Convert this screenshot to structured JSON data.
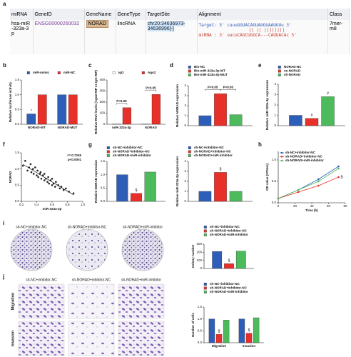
{
  "panels": [
    "a",
    "b",
    "c",
    "d",
    "e",
    "f",
    "g",
    "h",
    "i",
    "j"
  ],
  "table": {
    "headers": [
      "miRNA",
      "GeneID",
      "GeneName",
      "GeneType",
      "TargetSite",
      "Alignment",
      "Class"
    ],
    "row": {
      "mirna": "hsa-miR-323a-3p",
      "gene_id": "ENSG00000260032",
      "gene_name": "NORAD",
      "gene_type": "lincRNA",
      "target_site": "chr20:34636973-34636996[-]",
      "alignment": {
        "target": "Target: 5' cuuuGGUACAGUAUGUAAUGUu 3'",
        "match": "|| || ||||||||",
        "mirna": "miRNA : 3' uucuCAGCUGGCA---CAUUACAc 5'"
      },
      "class": "7mer-m8"
    }
  },
  "photos": {
    "colony": [
      "sh-NC+inhibitor-NC",
      "sh-NORAD+inhibitor-NC",
      "sh-NORAD+miR-inhibitor"
    ],
    "transwell_columns": [
      "sh-NC+inhibitor-NC",
      "sh-NORAD+inhibitor-NC",
      "sh-NORAD+miR-inhibitor"
    ],
    "transwell_rows": [
      "Migration",
      "Invasion"
    ]
  },
  "chart_data": [
    {
      "type": "bar",
      "y_label": "Relative luciferase activity",
      "categories": [
        "NORAD-WT",
        "NORAD-MUT"
      ],
      "ylim": [
        0,
        1.5
      ],
      "yticks": [
        {
          "value": 0,
          "label": "0.0"
        },
        0.5,
        {
          "value": 1,
          "label": "1.0"
        },
        1.5
      ],
      "series": [
        {
          "name": "miR-mimic",
          "color": "#2e5fb8",
          "values": [
            0.35,
            1.0
          ],
          "flags": [
            "*",
            null
          ]
        },
        {
          "name": "miR-NC",
          "color": "#e8302a",
          "values": [
            1.0,
            1.0
          ]
        }
      ]
    },
    {
      "type": "bar",
      "y_label": "Relative RNA levels (Ago2 RIP vs IgG RIP)",
      "categories": [
        "miR-323a-3p",
        "NORAD"
      ],
      "ylim": [
        0,
        400
      ],
      "yticks": [
        0,
        100,
        200,
        300,
        400
      ],
      "brackets": [
        "P<0.05",
        "P<0.05"
      ],
      "series": [
        {
          "name": "IgG",
          "color": "#ffffff",
          "values": [
            1,
            1
          ]
        },
        {
          "name": "Ago2",
          "color": "#e8302a",
          "values": [
            150,
            270
          ]
        }
      ]
    },
    {
      "type": "bar",
      "y_label": "Relative NORAD expression",
      "categories": [
        null
      ],
      "ylim": [
        0,
        4
      ],
      "yticks": [
        0,
        1,
        2,
        3,
        4
      ],
      "brackets": [
        "P<0.05",
        "P<0.05"
      ],
      "series": [
        {
          "name": "Bio-NC",
          "color": "#2e5fb8",
          "values": [
            1.0
          ]
        },
        {
          "name": "Bio-miR-323a-3p-WT",
          "color": "#e8302a",
          "values": [
            3.2
          ]
        },
        {
          "name": "Bio-miR-323a-3p-MUT",
          "color": "#4dbb5c",
          "values": [
            1.1
          ]
        }
      ]
    },
    {
      "type": "bar",
      "y_label": "Relative miR-323a-3p expression",
      "categories": [
        null
      ],
      "ylim": [
        0,
        4
      ],
      "yticks": [
        0,
        1,
        2,
        3,
        4
      ],
      "series": [
        {
          "name": "NORAD-NC",
          "color": "#2e5fb8",
          "values": [
            1.0
          ]
        },
        {
          "name": "oe-NORAD",
          "color": "#e8302a",
          "values": [
            0.7
          ],
          "flags": [
            "#"
          ]
        },
        {
          "name": "sh-NORAD",
          "color": "#4dbb5c",
          "values": [
            2.8
          ],
          "flags": [
            "#"
          ]
        }
      ]
    },
    {
      "type": "scatter",
      "x_label": "miR-323a-3p",
      "y_label": "NORAD",
      "annotations": [
        "r=-0.7245",
        "p<0.0001"
      ],
      "color": "#222222",
      "xlim": [
        0.2,
        1.0
      ],
      "xticks": [
        0.2,
        0.4,
        0.6,
        0.8,
        {
          "value": 1,
          "label": "1.0"
        }
      ],
      "ylim": [
        0,
        1.5
      ],
      "yticks": [
        {
          "value": 0,
          "label": "0.0"
        },
        0.5,
        {
          "value": 1,
          "label": "1.0"
        },
        1.5
      ],
      "x": [
        0.22,
        0.25,
        0.28,
        0.3,
        0.32,
        0.33,
        0.35,
        0.36,
        0.38,
        0.4,
        0.41,
        0.42,
        0.44,
        0.45,
        0.46,
        0.48,
        0.5,
        0.5,
        0.52,
        0.54,
        0.55,
        0.56,
        0.58,
        0.6,
        0.6,
        0.62,
        0.64,
        0.65,
        0.68,
        0.7,
        0.72,
        0.75,
        0.78,
        0.82,
        0.88
      ],
      "y": [
        1.1,
        1.25,
        0.95,
        1.05,
        1.15,
        0.9,
        1.0,
        0.85,
        1.05,
        0.8,
        0.95,
        0.75,
        0.85,
        0.9,
        0.7,
        0.8,
        0.65,
        0.85,
        0.7,
        0.6,
        0.75,
        0.55,
        0.65,
        0.5,
        0.7,
        0.55,
        0.45,
        0.6,
        0.5,
        0.4,
        0.45,
        0.35,
        0.4,
        0.3,
        0.25
      ]
    },
    {
      "type": "bar",
      "y_label": "Relative NORAD expression",
      "categories": [
        null
      ],
      "ylim": [
        0,
        1.5
      ],
      "yticks": [
        {
          "value": 0,
          "label": "0.0"
        },
        0.5,
        {
          "value": 1,
          "label": "1.0"
        },
        1.5
      ],
      "series": [
        {
          "name": "sh-NC+inhibitor-NC",
          "color": "#2e5fb8",
          "values": [
            1.0
          ]
        },
        {
          "name": "sh-NORAD+inhibitor-NC",
          "color": "#e8302a",
          "values": [
            0.3
          ],
          "flags": [
            "$"
          ]
        },
        {
          "name": "sh-NORAD+miR-inhibitor",
          "color": "#4dbb5c",
          "values": [
            1.1
          ]
        }
      ]
    },
    {
      "type": "bar",
      "y_label": "Relative miR-323a-3p expression",
      "categories": [
        null
      ],
      "ylim": [
        0,
        4
      ],
      "yticks": [
        0,
        1,
        2,
        3,
        4
      ],
      "series": [
        {
          "name": "sh-NC+inhibitor-NC",
          "color": "#2e5fb8",
          "values": [
            1.0
          ]
        },
        {
          "name": "sh-NORAD+inhibitor-NC",
          "color": "#e8302a",
          "values": [
            2.9
          ],
          "flags": [
            "$"
          ]
        },
        {
          "name": "sh-NORAD+miR-inhibitor",
          "color": "#4dbb5c",
          "values": [
            1.0
          ]
        }
      ]
    },
    {
      "type": "line",
      "x_label": "Time (h)",
      "y_label": "OD value (570nm)",
      "x": [
        0,
        24,
        48,
        72
      ],
      "xlim": [
        0,
        80
      ],
      "xticks": [
        0,
        20,
        40,
        60,
        80
      ],
      "ylim": [
        0,
        1.2
      ],
      "yticks": [
        {
          "value": 0,
          "label": "0.0"
        },
        0.5,
        {
          "value": 1,
          "label": "1.0"
        }
      ],
      "series": [
        {
          "name": "sh-NC+inhibitor-NC",
          "color": "#2e5fb8",
          "values": [
            0.1,
            0.3,
            0.55,
            0.85
          ]
        },
        {
          "name": "sh-NORAD+inhibitor-NC",
          "color": "#e8302a",
          "values": [
            0.1,
            0.25,
            0.4,
            0.6
          ],
          "flags": [
            null,
            null,
            null,
            "$"
          ]
        },
        {
          "name": "sh-NORAD+miR-inhibitor",
          "color": "#4dbb5c",
          "values": [
            0.1,
            0.3,
            0.5,
            0.8
          ]
        }
      ]
    },
    {
      "type": "bar",
      "y_label": "Colony number",
      "categories": [
        null
      ],
      "ylim": [
        0,
        300
      ],
      "yticks": [
        0,
        100,
        200,
        300
      ],
      "series": [
        {
          "name": "sh-NC+inhibitor-NC",
          "color": "#2e5fb8",
          "values": [
            210
          ]
        },
        {
          "name": "sh-NORAD+inhibitor-NC",
          "color": "#e8302a",
          "values": [
            60
          ],
          "flags": [
            "$"
          ]
        },
        {
          "name": "sh-NORAD+miR-inhibitor",
          "color": "#4dbb5c",
          "values": [
            215
          ]
        }
      ]
    },
    {
      "type": "bar",
      "y_label": "Number of cells",
      "categories": [
        "Migration",
        "Invasion"
      ],
      "ylim": [
        0,
        1.5
      ],
      "yticks": [
        {
          "value": 0,
          "label": "0.0"
        },
        0.5,
        {
          "value": 1,
          "label": "1.0"
        },
        1.5
      ],
      "series": [
        {
          "name": "sh-NC+inhibitor-NC",
          "color": "#2e5fb8",
          "values": [
            1.0,
            1.0
          ]
        },
        {
          "name": "sh-NORAD+inhibitor-NC",
          "color": "#e8302a",
          "values": [
            0.35,
            0.4
          ],
          "flags": [
            "$",
            "$"
          ]
        },
        {
          "name": "sh-NORAD+miR-inhibitor",
          "color": "#4dbb5c",
          "values": [
            0.95,
            1.05
          ]
        }
      ]
    }
  ]
}
